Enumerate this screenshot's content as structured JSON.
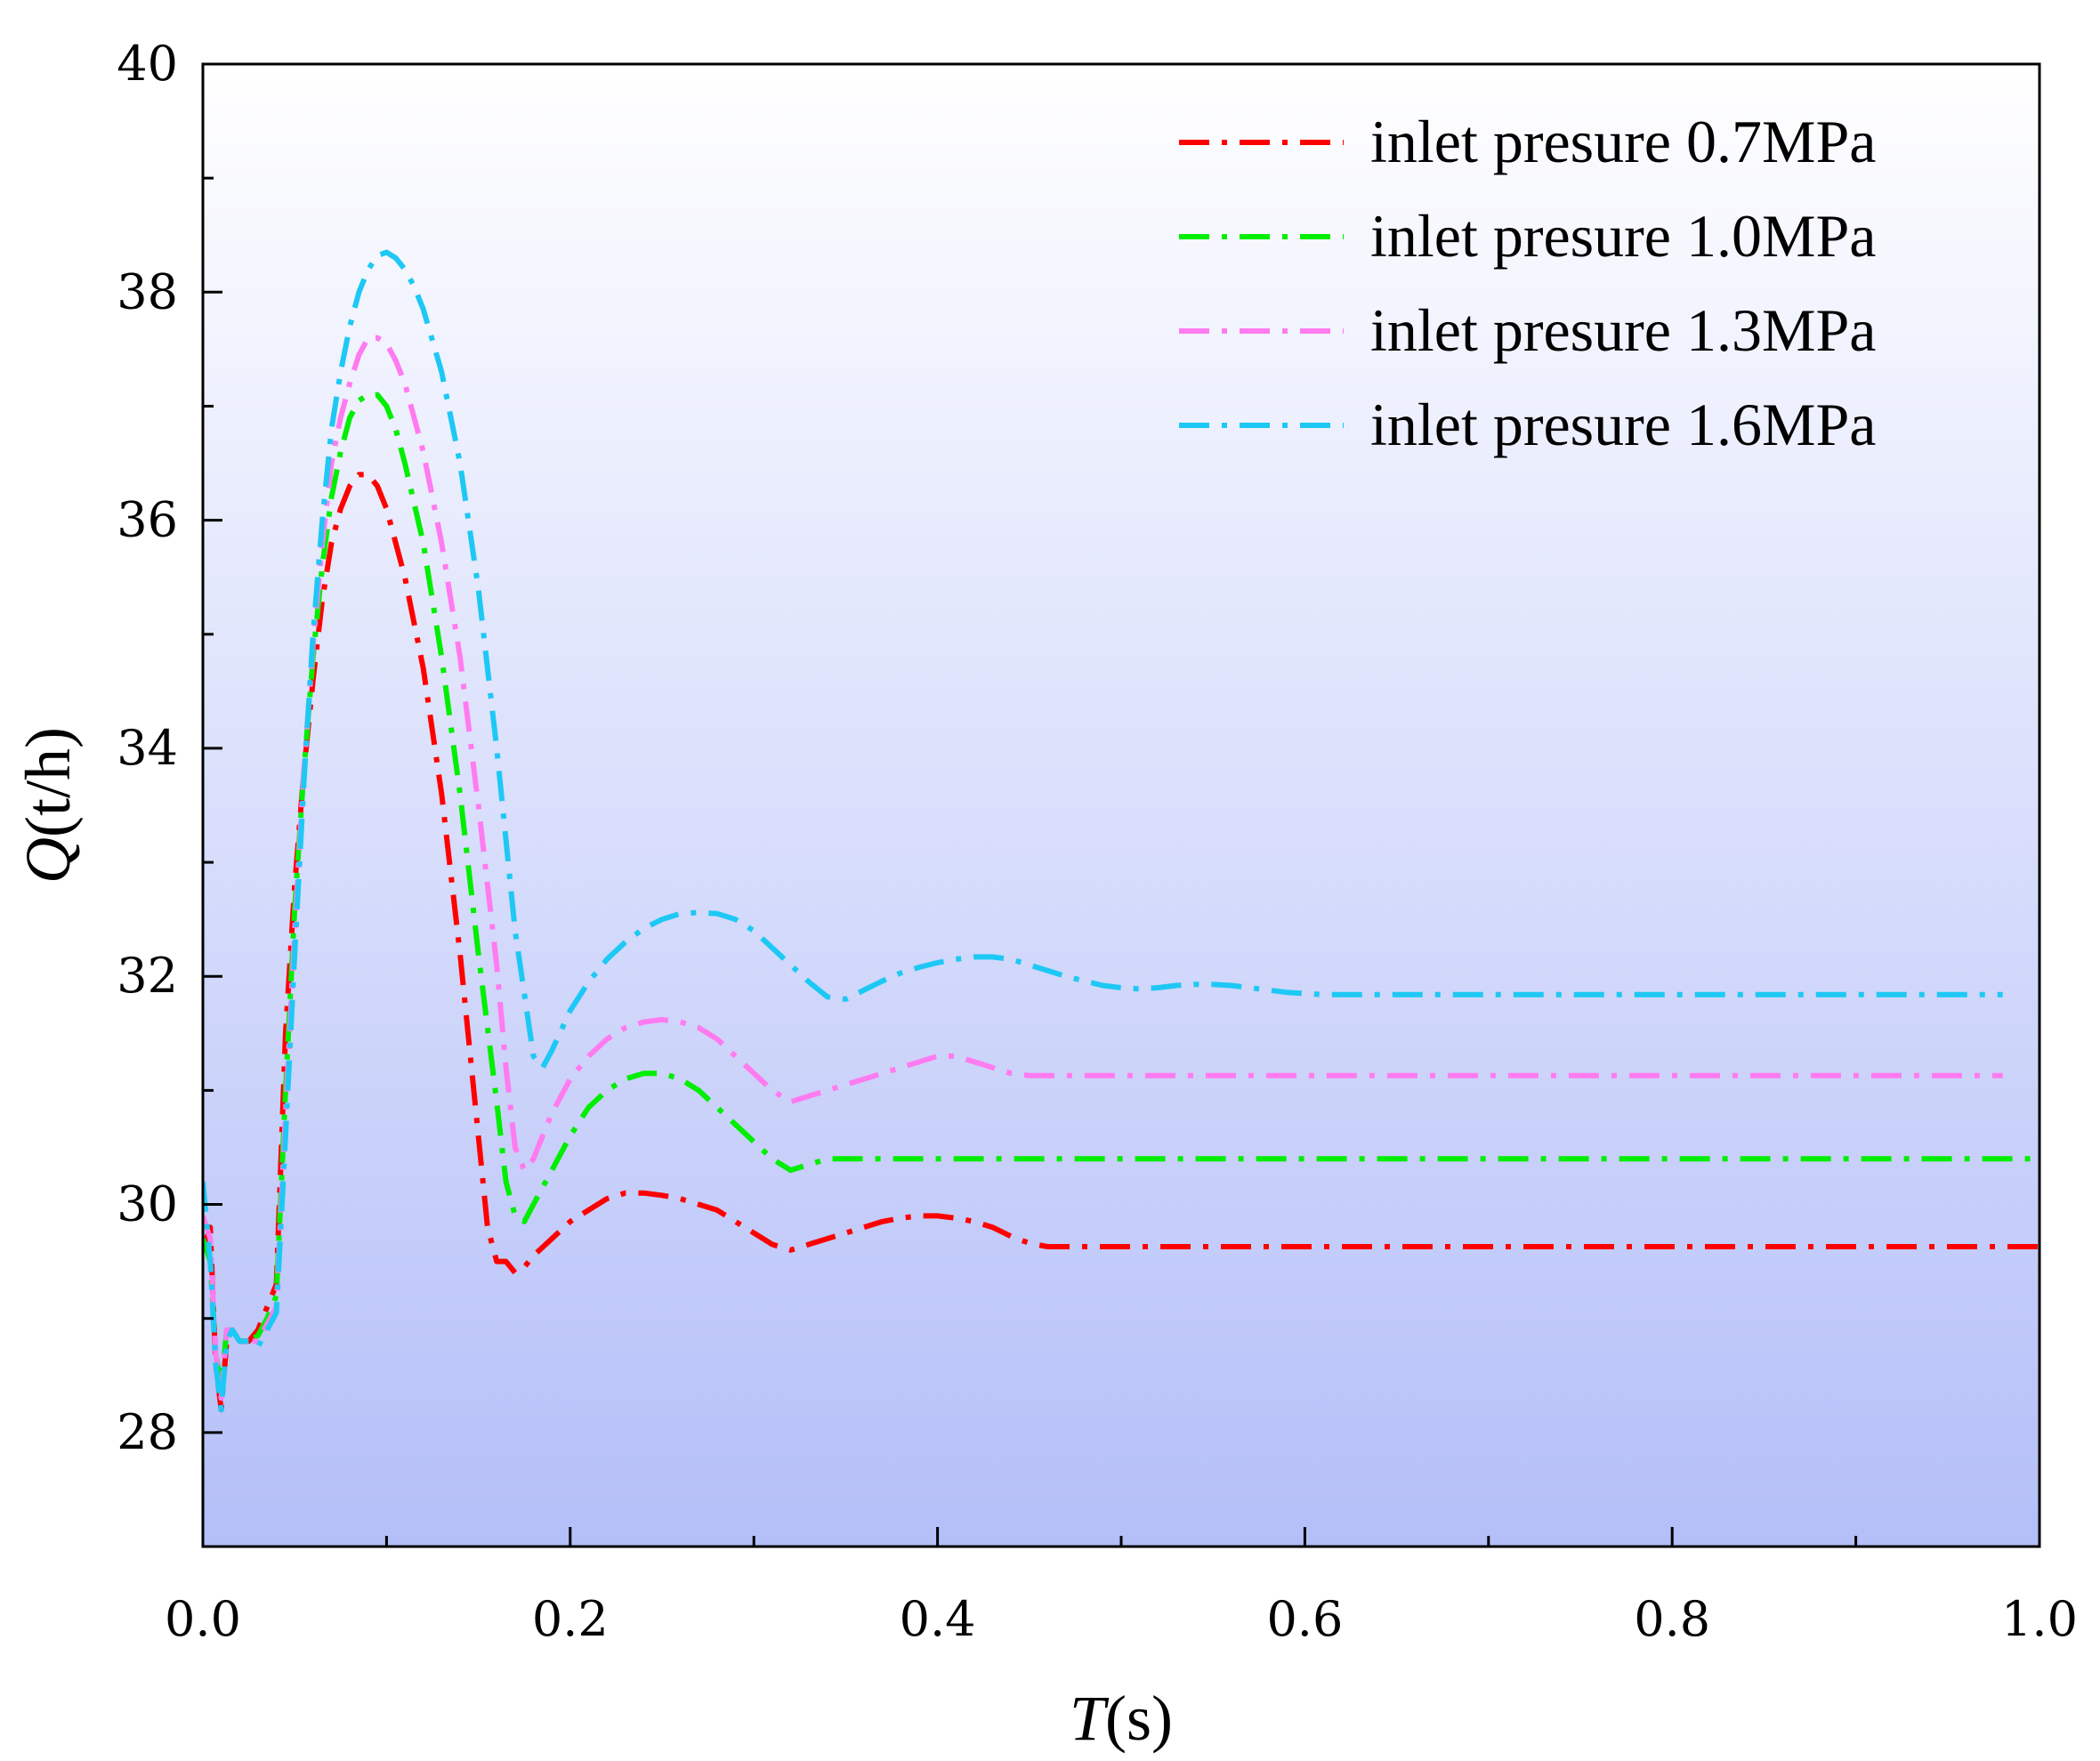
{
  "chart_data": {
    "type": "line",
    "xlabel": {
      "italic": "T",
      "rest": "(s)"
    },
    "ylabel": {
      "italic": "Q",
      "rest": "(t/h)"
    },
    "xlim": [
      0.0,
      1.0
    ],
    "ylim": [
      27,
      40
    ],
    "x_ticks": [
      "0.0",
      "0.2",
      "0.4",
      "0.6",
      "0.8",
      "1.0"
    ],
    "x_tick_values": [
      0,
      0.2,
      0.4,
      0.6,
      0.8,
      1.0
    ],
    "y_ticks": [
      "28",
      "30",
      "32",
      "34",
      "36",
      "38",
      "40"
    ],
    "y_tick_values": [
      28,
      30,
      32,
      34,
      36,
      38,
      40
    ],
    "grid": false,
    "legend_position": "top-right",
    "background": {
      "top": "#ffffff",
      "bottom": "#b4bff8"
    },
    "series": [
      {
        "name": "inlet presure 0.7MPa",
        "color": "#ff0000",
        "x": [
          0,
          0.004,
          0.007,
          0.01,
          0.013,
          0.016,
          0.02,
          0.025,
          0.03,
          0.035,
          0.04,
          0.045,
          0.05,
          0.055,
          0.06,
          0.065,
          0.07,
          0.075,
          0.08,
          0.085,
          0.09,
          0.095,
          0.1,
          0.105,
          0.11,
          0.12,
          0.13,
          0.14,
          0.15,
          0.155,
          0.16,
          0.165,
          0.17,
          0.175,
          0.18,
          0.19,
          0.2,
          0.21,
          0.22,
          0.23,
          0.24,
          0.25,
          0.26,
          0.27,
          0.28,
          0.29,
          0.3,
          0.31,
          0.32,
          0.33,
          0.34,
          0.35,
          0.36,
          0.37,
          0.38,
          0.39,
          0.4,
          0.41,
          0.42,
          0.43,
          0.44,
          0.45,
          0.46,
          0.47,
          0.5,
          0.6,
          0.7,
          0.8,
          0.9,
          1.0
        ],
        "y": [
          29.6,
          29.8,
          28.6,
          28.2,
          28.8,
          28.9,
          28.8,
          28.8,
          28.9,
          29.1,
          29.3,
          31.5,
          32.8,
          33.8,
          34.6,
          35.3,
          35.8,
          36.1,
          36.3,
          36.4,
          36.4,
          36.3,
          36.1,
          35.8,
          35.5,
          34.7,
          33.6,
          32.2,
          30.6,
          29.8,
          29.5,
          29.5,
          29.4,
          29.45,
          29.55,
          29.7,
          29.85,
          29.95,
          30.05,
          30.1,
          30.1,
          30.08,
          30.05,
          30.0,
          29.95,
          29.85,
          29.75,
          29.65,
          29.6,
          29.65,
          29.7,
          29.75,
          29.8,
          29.85,
          29.88,
          29.9,
          29.9,
          29.88,
          29.85,
          29.8,
          29.72,
          29.66,
          29.63,
          29.63,
          29.63,
          29.63,
          29.63,
          29.63,
          29.63,
          29.63
        ]
      },
      {
        "name": "inlet presure 1.0MPa",
        "color": "#00ee00",
        "x": [
          0,
          0.004,
          0.007,
          0.01,
          0.013,
          0.016,
          0.02,
          0.025,
          0.03,
          0.035,
          0.04,
          0.045,
          0.05,
          0.055,
          0.06,
          0.065,
          0.07,
          0.075,
          0.08,
          0.085,
          0.09,
          0.095,
          0.1,
          0.105,
          0.11,
          0.12,
          0.13,
          0.14,
          0.15,
          0.16,
          0.165,
          0.17,
          0.175,
          0.18,
          0.19,
          0.2,
          0.21,
          0.22,
          0.23,
          0.24,
          0.25,
          0.26,
          0.27,
          0.28,
          0.29,
          0.3,
          0.31,
          0.32,
          0.33,
          0.34,
          0.35,
          0.4,
          0.5,
          0.6,
          0.7,
          0.8,
          0.9,
          1.0
        ],
        "y": [
          29.7,
          29.5,
          28.7,
          28.4,
          28.9,
          28.9,
          28.8,
          28.8,
          28.85,
          29.0,
          29.2,
          31.0,
          32.6,
          33.8,
          34.8,
          35.6,
          36.2,
          36.6,
          36.9,
          37.05,
          37.1,
          37.1,
          37.0,
          36.8,
          36.5,
          35.8,
          34.8,
          33.6,
          32.2,
          30.9,
          30.2,
          29.9,
          29.85,
          30.0,
          30.3,
          30.6,
          30.85,
          31.0,
          31.1,
          31.15,
          31.15,
          31.1,
          31.0,
          30.85,
          30.7,
          30.55,
          30.4,
          30.3,
          30.35,
          30.4,
          30.4,
          30.4,
          30.4,
          30.4,
          30.4,
          30.4,
          30.4,
          30.4
        ]
      },
      {
        "name": "inlet presure 1.3MPa",
        "color": "#ff7bf0",
        "x": [
          0,
          0.004,
          0.007,
          0.01,
          0.013,
          0.016,
          0.02,
          0.025,
          0.03,
          0.035,
          0.04,
          0.045,
          0.05,
          0.055,
          0.06,
          0.065,
          0.07,
          0.075,
          0.08,
          0.085,
          0.09,
          0.095,
          0.1,
          0.105,
          0.11,
          0.12,
          0.13,
          0.14,
          0.15,
          0.16,
          0.165,
          0.17,
          0.175,
          0.18,
          0.185,
          0.19,
          0.2,
          0.21,
          0.22,
          0.23,
          0.24,
          0.25,
          0.26,
          0.27,
          0.28,
          0.29,
          0.3,
          0.31,
          0.32,
          0.33,
          0.34,
          0.35,
          0.36,
          0.37,
          0.38,
          0.39,
          0.4,
          0.41,
          0.42,
          0.43,
          0.44,
          0.45,
          0.5,
          0.6,
          0.7,
          0.8,
          0.9,
          0.98
        ],
        "y": [
          29.9,
          29.7,
          28.7,
          28.3,
          28.9,
          28.9,
          28.8,
          28.8,
          28.8,
          28.95,
          29.1,
          30.8,
          32.4,
          33.8,
          34.9,
          35.8,
          36.5,
          36.9,
          37.2,
          37.45,
          37.6,
          37.6,
          37.55,
          37.4,
          37.2,
          36.6,
          35.8,
          34.8,
          33.5,
          32.1,
          31.2,
          30.5,
          30.3,
          30.4,
          30.6,
          30.8,
          31.1,
          31.3,
          31.45,
          31.55,
          31.6,
          31.62,
          31.6,
          31.55,
          31.45,
          31.3,
          31.15,
          31.0,
          30.9,
          30.95,
          31.0,
          31.05,
          31.1,
          31.15,
          31.2,
          31.25,
          31.3,
          31.3,
          31.25,
          31.2,
          31.15,
          31.13,
          31.13,
          31.13,
          31.13,
          31.13,
          31.13,
          31.13
        ]
      },
      {
        "name": "inlet presure 1.6MPa",
        "color": "#1ec8f4",
        "x": [
          0,
          0.004,
          0.007,
          0.01,
          0.013,
          0.016,
          0.02,
          0.025,
          0.03,
          0.035,
          0.04,
          0.045,
          0.05,
          0.055,
          0.06,
          0.065,
          0.07,
          0.075,
          0.08,
          0.085,
          0.09,
          0.095,
          0.1,
          0.105,
          0.11,
          0.115,
          0.12,
          0.13,
          0.14,
          0.15,
          0.16,
          0.17,
          0.18,
          0.185,
          0.19,
          0.2,
          0.21,
          0.22,
          0.23,
          0.24,
          0.25,
          0.26,
          0.27,
          0.28,
          0.29,
          0.3,
          0.31,
          0.32,
          0.33,
          0.34,
          0.35,
          0.36,
          0.37,
          0.38,
          0.39,
          0.4,
          0.41,
          0.42,
          0.43,
          0.44,
          0.45,
          0.46,
          0.47,
          0.48,
          0.49,
          0.5,
          0.51,
          0.52,
          0.53,
          0.54,
          0.55,
          0.56,
          0.57,
          0.58,
          0.59,
          0.6,
          0.61,
          0.62,
          0.7,
          0.8,
          0.9,
          0.98
        ],
        "y": [
          30.2,
          29.5,
          28.6,
          28.2,
          28.8,
          28.9,
          28.8,
          28.8,
          28.75,
          28.9,
          29.05,
          30.6,
          32.2,
          33.7,
          35.0,
          36.0,
          36.8,
          37.3,
          37.7,
          38.0,
          38.2,
          38.32,
          38.35,
          38.3,
          38.2,
          38.05,
          37.85,
          37.3,
          36.5,
          35.4,
          34.0,
          32.4,
          31.3,
          31.2,
          31.35,
          31.7,
          31.95,
          32.15,
          32.3,
          32.42,
          32.5,
          32.55,
          32.56,
          32.55,
          32.5,
          32.4,
          32.25,
          32.1,
          31.95,
          31.82,
          31.8,
          31.88,
          31.96,
          32.03,
          32.08,
          32.12,
          32.15,
          32.17,
          32.17,
          32.15,
          32.1,
          32.05,
          32.0,
          31.96,
          31.92,
          31.9,
          31.89,
          31.9,
          31.92,
          31.93,
          31.93,
          31.92,
          31.9,
          31.88,
          31.86,
          31.85,
          31.84,
          31.84,
          31.84,
          31.84,
          31.84,
          31.84
        ]
      }
    ]
  }
}
